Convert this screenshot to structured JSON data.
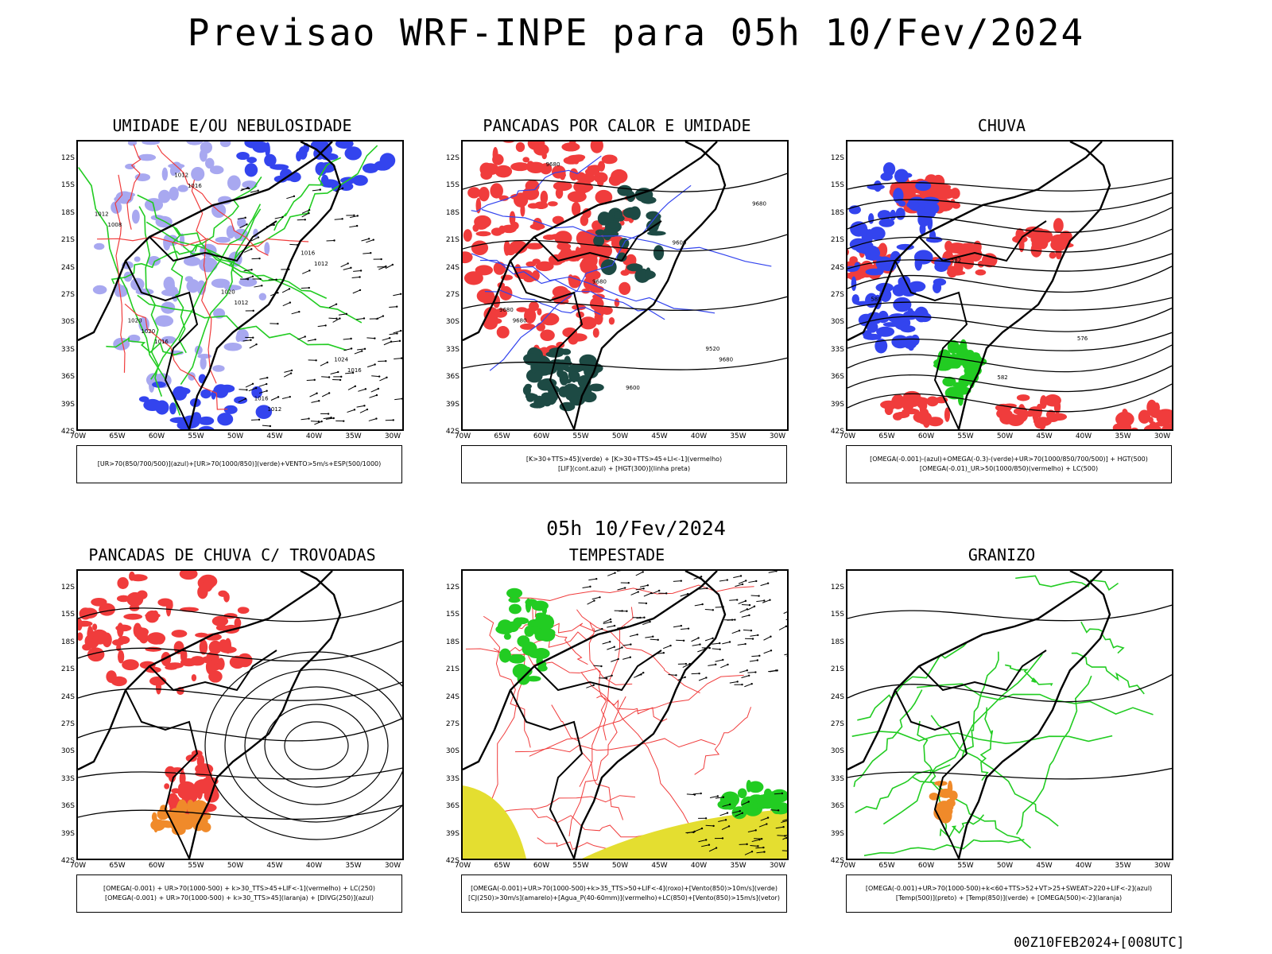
{
  "title": "Previsao WRF-INPE  para 05h 10/Fev/2024",
  "subtitle": "05h 10/Fev/2024",
  "footer": "00Z10FEB2024+[008UTC]",
  "lat_labels": [
    "12S",
    "15S",
    "18S",
    "21S",
    "24S",
    "27S",
    "30S",
    "33S",
    "36S",
    "39S",
    "42S"
  ],
  "lon_labels": [
    "70W",
    "65W",
    "60W",
    "55W",
    "50W",
    "45W",
    "40W",
    "35W",
    "30W"
  ],
  "colors": {
    "red": "#f03c3c",
    "green": "#22cc22",
    "blue": "#3344ee",
    "lightblue": "#a8a8f0",
    "darkgreen": "#1d4a44",
    "yellow": "#e4de30",
    "orange": "#f08a2a"
  },
  "panels": [
    {
      "title": "UMIDADE E/OU NEBULOSIDADE",
      "legend": [
        "[UR>70(850/700/500)](azul)+[UR>70(1000/850)](verde)+VENTO>5m/s+ESP(500/1000)"
      ],
      "contour_labels": [
        "1016",
        "1012",
        "1012",
        "1008",
        "1016",
        "1012",
        "1016",
        "1020",
        "1020",
        "1016",
        "1012",
        "1012",
        "1016",
        "1024",
        "1020"
      ]
    },
    {
      "title": "PANCADAS POR CALOR E UMIDADE",
      "legend": [
        "[K>30+TTS>45](verde) + [K>30+TTS>45+LI<-1](vermelho)",
        "[LIF](cont.azul) + [HGT(300)](linha preta)"
      ],
      "contour_labels": [
        "9680",
        "9680",
        "9680",
        "9600",
        "9680",
        "9680",
        "9600",
        "9520",
        "9680"
      ]
    },
    {
      "title": "CHUVA",
      "legend": [
        "[OMEGA(-0.001)-(azul)+OMEGA(-0.3)-(verde)+UR>70(1000/850/700/500)] + HGT(500)",
        "[OMEGA(-0.01)_UR>50(1000/850)(vermelho) + LC(500)"
      ],
      "contour_labels": [
        "582",
        "576",
        "588",
        "582"
      ]
    },
    {
      "title": "PANCADAS DE CHUVA C/ TROVOADAS",
      "legend": [
        "[OMEGA(-0.001) + UR>70(1000-500) + k>30_TTS>45+LIF<-1](vermelho) + LC(250)",
        "[OMEGA(-0.001) + UR>70(1000-500) + k>30_TTS>45](laranja) + [DIVG(250)](azul)"
      ],
      "contour_labels": []
    },
    {
      "title": "TEMPESTADE",
      "legend": [
        "[OMEGA(-0.001)+UR>70(1000-500)+k>35_TTS>50+LIF<-4](roxo)+[Vento(850)>10m/s](verde)",
        "[CJ(250)>30m/s](amarelo)+[Agua_P(40-60mm)](vermelho)+LC(850)+[Vento(850)>15m/s](vetor)"
      ],
      "contour_labels": []
    },
    {
      "title": "GRANIZO",
      "legend": [
        "[OMEGA(-0.001)+UR>70(1000-500)+k<60+TTS>52+VT>25+SWEAT>220+LIF<-2](azul)",
        "[Temp(500)](preto) + [Temp(850)](verde) + [OMEGA(500)<-2](laranja)"
      ],
      "contour_labels": []
    }
  ]
}
